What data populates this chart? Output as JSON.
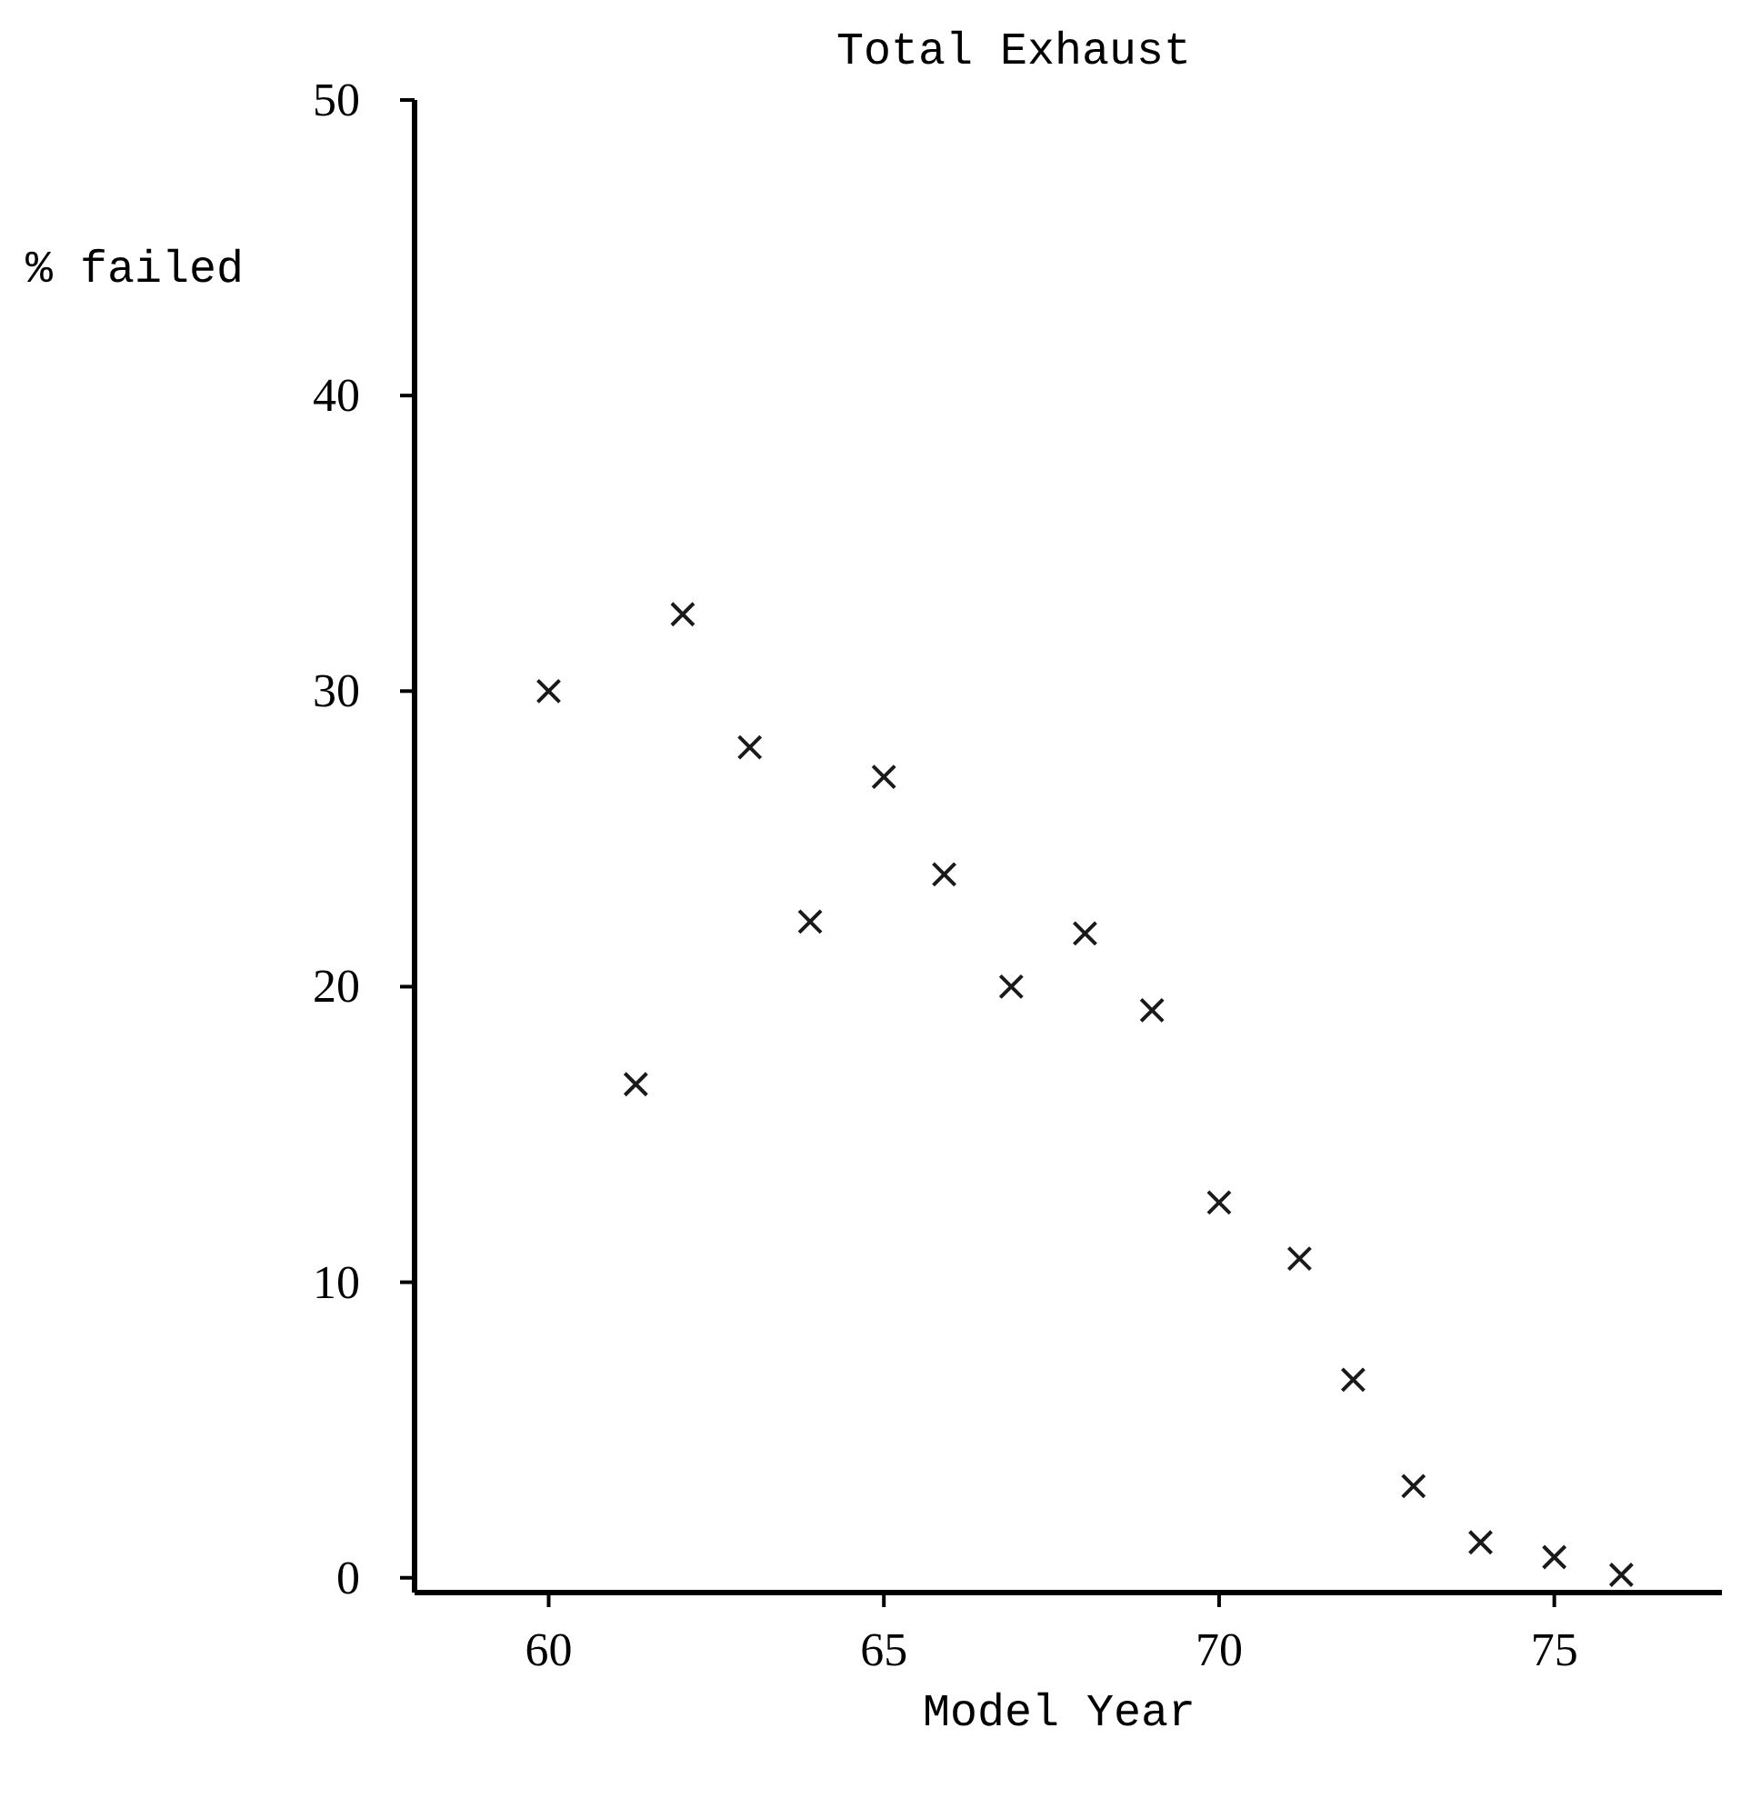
{
  "chart_data": {
    "type": "scatter",
    "title": "Total Exhaust",
    "xlabel": "Model Year",
    "ylabel": "% failed",
    "x": [
      60,
      61.3,
      62,
      63,
      63.9,
      65,
      65.9,
      66.9,
      68,
      69,
      70,
      71.2,
      72,
      72.9,
      73.9,
      75,
      76
    ],
    "values": [
      30.0,
      16.7,
      32.6,
      28.1,
      22.2,
      27.1,
      23.8,
      20.0,
      21.8,
      19.2,
      12.7,
      10.8,
      6.7,
      3.1,
      1.2,
      0.7,
      0.1
    ],
    "color": "#1a1a1a",
    "marker": "cross",
    "xlim": [
      58,
      77.5
    ],
    "xticks": [
      60,
      65,
      70,
      75
    ],
    "ylim": [
      -0.5,
      50
    ],
    "yticks": [
      0,
      10,
      20,
      30,
      40,
      50
    ]
  }
}
